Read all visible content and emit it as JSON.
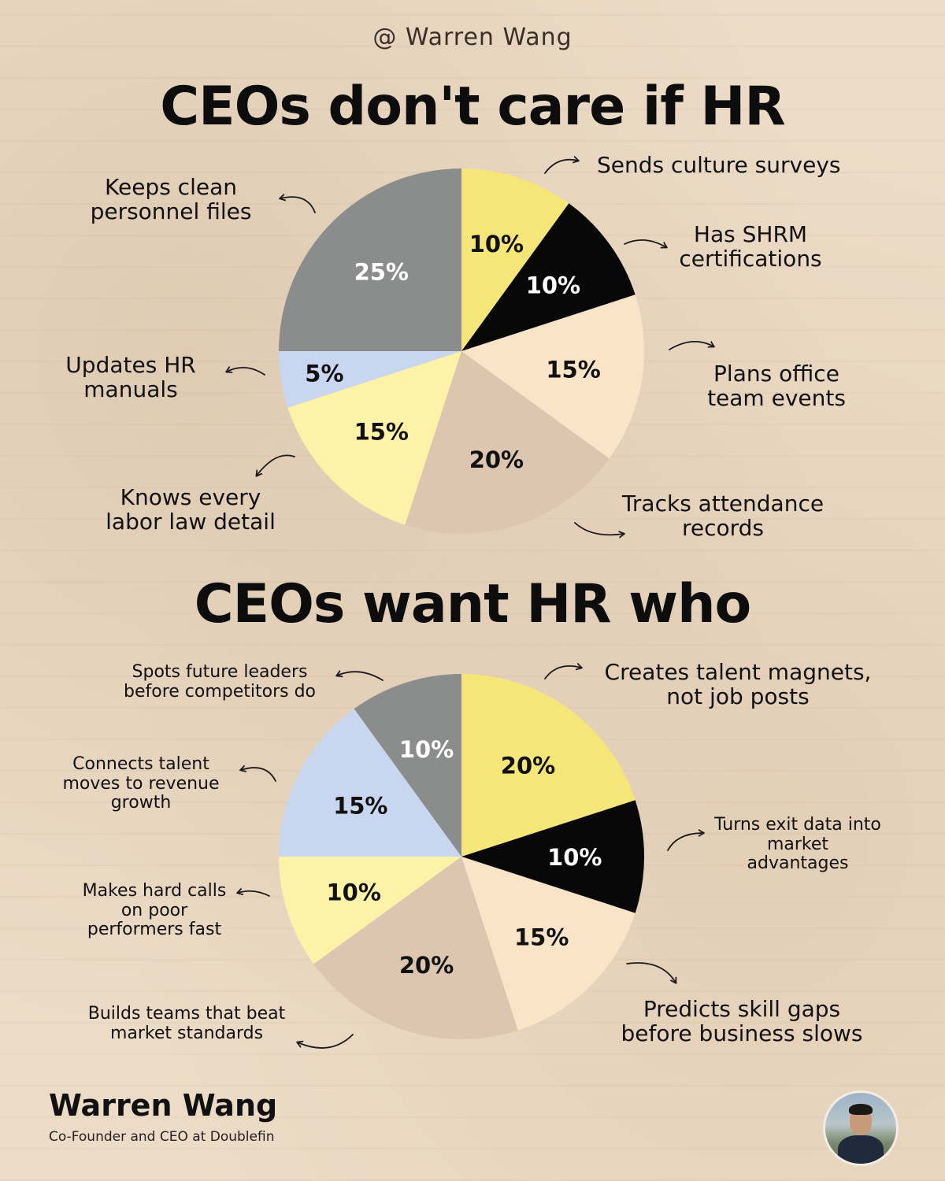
{
  "header": {
    "handle": "@ Warren Wang"
  },
  "chart_data": [
    {
      "type": "pie",
      "title": "CEOs don't care if HR",
      "slices": [
        {
          "pct_label": "10%",
          "value": 10,
          "color": "#f6e679",
          "label_color": "#111111",
          "label": "Sends culture surveys"
        },
        {
          "pct_label": "10%",
          "value": 10,
          "color": "#080808",
          "label_color": "#ffffff",
          "label": "Has SHRM certifications"
        },
        {
          "pct_label": "15%",
          "value": 15,
          "color": "#f9e4c8",
          "label_color": "#111111",
          "label": "Plans office team events"
        },
        {
          "pct_label": "20%",
          "value": 20,
          "color": "#dcc6b0",
          "label_color": "#111111",
          "label": "Tracks attendance records"
        },
        {
          "pct_label": "15%",
          "value": 15,
          "color": "#fdf2a8",
          "label_color": "#111111",
          "label": "Knows every labor law detail"
        },
        {
          "pct_label": "5%",
          "value": 5,
          "color": "#c9d6ef",
          "label_color": "#111111",
          "label": "Updates HR manuals"
        },
        {
          "pct_label": "25%",
          "value": 25,
          "color": "#8a8d8b",
          "label_color": "#ffffff",
          "label": "Keeps clean personnel files"
        }
      ]
    },
    {
      "type": "pie",
      "title": "CEOs want HR who",
      "slices": [
        {
          "pct_label": "20%",
          "value": 20,
          "color": "#f6e679",
          "label_color": "#111111",
          "label": "Creates talent magnets, not job posts"
        },
        {
          "pct_label": "10%",
          "value": 10,
          "color": "#080808",
          "label_color": "#ffffff",
          "label": "Turns exit data into market advantages"
        },
        {
          "pct_label": "15%",
          "value": 15,
          "color": "#f9e4c8",
          "label_color": "#111111",
          "label": "Predicts skill gaps before business slows"
        },
        {
          "pct_label": "20%",
          "value": 20,
          "color": "#dcc6b0",
          "label_color": "#111111",
          "label": "Builds teams that beat market standards"
        },
        {
          "pct_label": "10%",
          "value": 10,
          "color": "#fdf2a8",
          "label_color": "#111111",
          "label": "Makes hard calls on poor performers fast"
        },
        {
          "pct_label": "15%",
          "value": 15,
          "color": "#c9d6ef",
          "label_color": "#111111",
          "label": "Connects talent moves to revenue growth"
        },
        {
          "pct_label": "10%",
          "value": 10,
          "color": "#8a8d8b",
          "label_color": "#ffffff",
          "label": "Spots future leaders before competitors do"
        }
      ]
    }
  ],
  "callouts_top": {
    "sends": [
      "Sends culture surveys"
    ],
    "shrm": [
      "Has SHRM",
      "certifications"
    ],
    "plans": [
      "Plans office",
      "team events"
    ],
    "tracks": [
      "Tracks attendance",
      "records"
    ],
    "knows": [
      "Knows every",
      "labor law detail"
    ],
    "updates": [
      "Updates HR",
      "manuals"
    ],
    "keeps": [
      "Keeps clean",
      "personnel files"
    ]
  },
  "callouts_bottom": {
    "creates": [
      "Creates talent magnets,",
      "not job posts"
    ],
    "turns": [
      "Turns exit data into",
      "market",
      "advantages"
    ],
    "predicts": [
      "Predicts skill gaps",
      "before business slows"
    ],
    "builds": [
      "Builds teams that beat",
      "market standards"
    ],
    "makes": [
      "Makes hard calls",
      "on poor",
      "performers fast"
    ],
    "connects": [
      "Connects talent",
      "moves to revenue",
      "growth"
    ],
    "spots": [
      "Spots future leaders",
      "before competitors do"
    ]
  },
  "author": {
    "name": "Warren Wang",
    "role": "Co-Founder and CEO at Doublefin"
  }
}
